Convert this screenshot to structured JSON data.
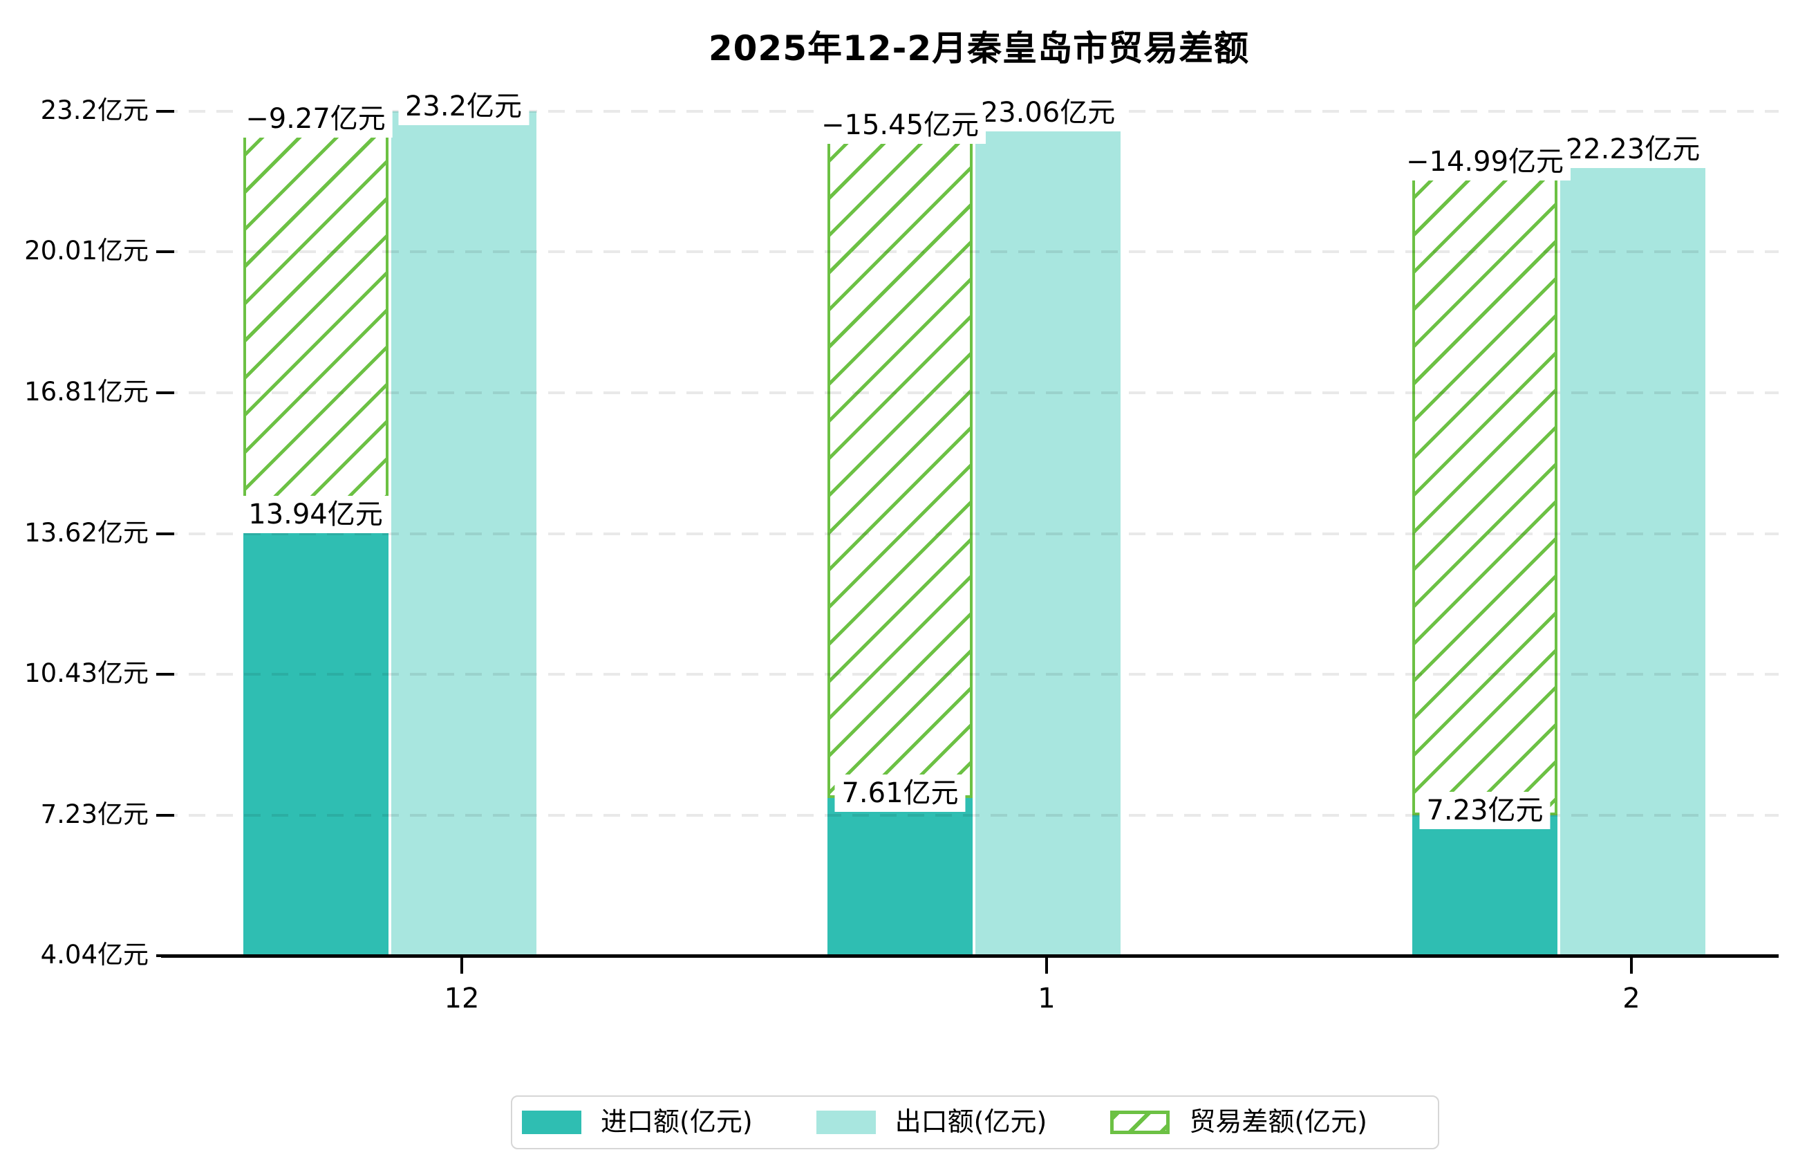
{
  "chart_data": {
    "type": "bar",
    "title": "2025年12-2月秦皇岛市贸易差额",
    "categories": [
      "12",
      "1",
      "2"
    ],
    "series": [
      {
        "name": "进口额(亿元)",
        "role": "import",
        "marker": "solid",
        "color": "#2FBEB2",
        "values": [
          13.94,
          7.61,
          7.23
        ],
        "labels": [
          "13.94亿元",
          "7.61亿元",
          "7.23亿元"
        ]
      },
      {
        "name": "出口额(亿元)",
        "role": "export",
        "marker": "solid",
        "color": "#A8E6DF",
        "values": [
          23.2,
          23.06,
          22.23
        ],
        "labels": [
          "23.2亿元",
          "23.06亿元",
          "22.23亿元"
        ]
      },
      {
        "name": "贸易差额(亿元)",
        "role": "balance",
        "marker": "hatch",
        "color": "#6CC144",
        "values": [
          -9.27,
          -15.45,
          -14.99
        ],
        "labels": [
          "−9.27亿元",
          "−15.45亿元",
          "−14.99亿元"
        ],
        "note": "floating hatched bar drawn from import level up to export level"
      }
    ],
    "ylim": [
      4.04,
      23.2
    ],
    "yticks": {
      "values": [
        4.04,
        7.23,
        10.43,
        13.62,
        16.81,
        20.01,
        23.2
      ],
      "labels": [
        "4.04亿元",
        "7.23亿元",
        "10.43亿元",
        "13.62亿元",
        "16.81亿元",
        "20.01亿元",
        "23.2亿元"
      ]
    },
    "xlabel": "",
    "ylabel": "",
    "grid": "dashed horizontal gridlines drawn above bars",
    "legend_position": "bottom-center"
  },
  "colors": {
    "import": "#2FBEB2",
    "export": "#A8E6DF",
    "balance_green": "#6CC144",
    "gridline": "rgba(0,0,0,0.085)",
    "axis": "#000000",
    "label_background": "#FFFFFF",
    "legend_border": "#D6D6D6",
    "background": "#FFFFFF"
  }
}
